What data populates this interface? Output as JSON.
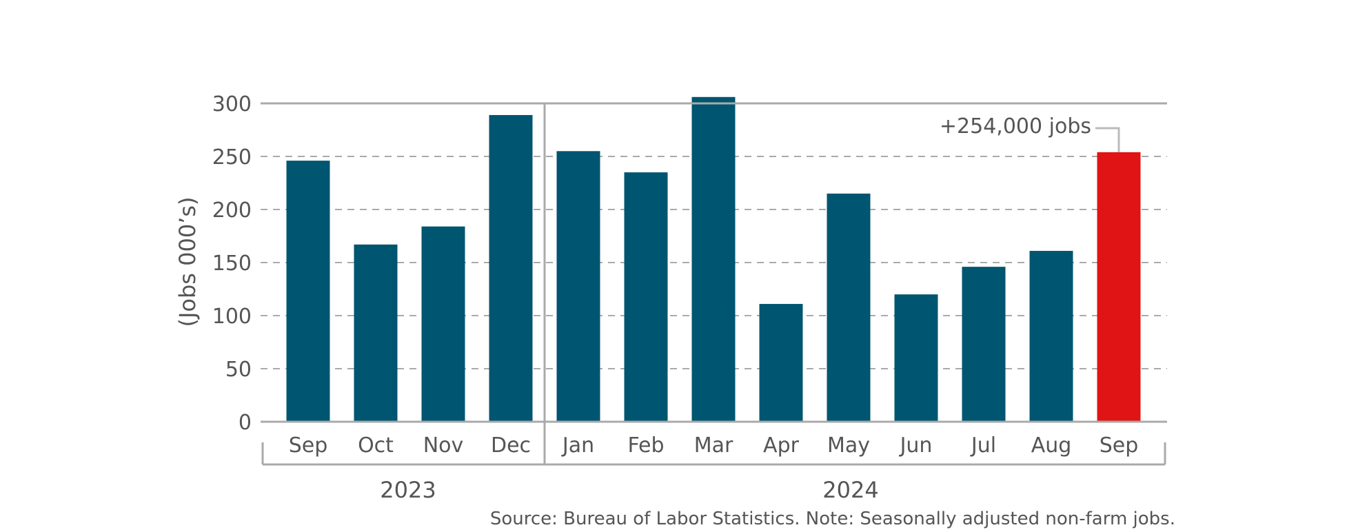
{
  "chart_data": {
    "type": "bar",
    "categories": [
      "Sep",
      "Oct",
      "Nov",
      "Dec",
      "Jan",
      "Feb",
      "Mar",
      "Apr",
      "May",
      "Jun",
      "Jul",
      "Aug",
      "Sep"
    ],
    "values": [
      246,
      167,
      184,
      289,
      255,
      235,
      306,
      111,
      215,
      120,
      146,
      161,
      254
    ],
    "groups": [
      {
        "label": "2023",
        "count": 4
      },
      {
        "label": "2024",
        "count": 9
      }
    ],
    "ylabel": "(Jobs 000’s)",
    "ylim": [
      0,
      300
    ],
    "yticks": [
      0,
      50,
      100,
      150,
      200,
      250,
      300
    ],
    "grid": "dashed horizontal",
    "highlight_index": 12,
    "annotation": "+254,000 jobs",
    "source": "Source:  Bureau of Labor Statistics. Note: Seasonally adjusted non-farm jobs.",
    "colors": {
      "bar": "#005570",
      "highlight": "#e01414",
      "grid": "#aaaaaa",
      "axis": "#aaaaaa",
      "text": "#555555"
    }
  }
}
